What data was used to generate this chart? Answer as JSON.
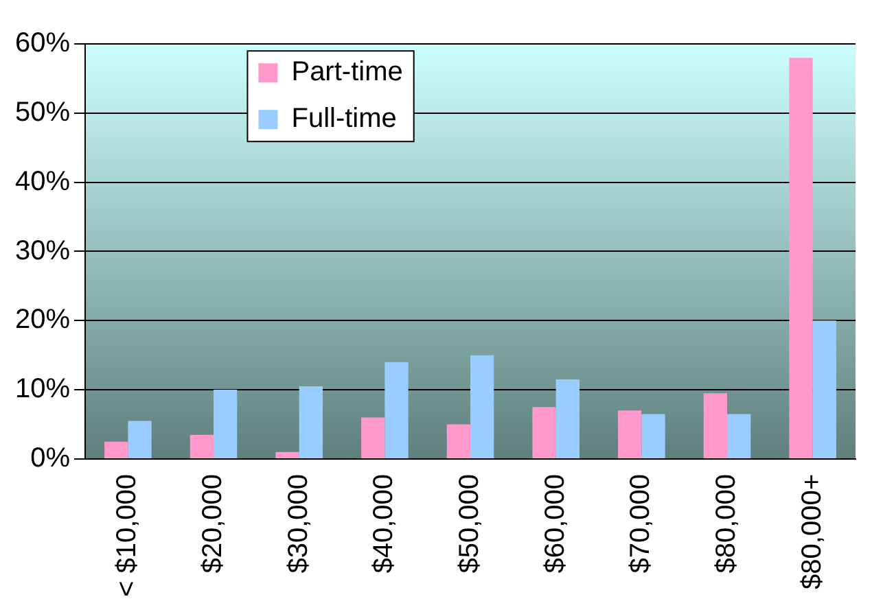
{
  "chart_data": {
    "type": "bar",
    "categories": [
      "< $10,000",
      "$20,000",
      "$30,000",
      "$40,000",
      "$50,000",
      "$60,000",
      "$70,000",
      "$80,000",
      "$80,000+"
    ],
    "series": [
      {
        "name": "Part-time",
        "color": "#ff99cc",
        "values": [
          2.5,
          3.5,
          1,
          6,
          5,
          7.5,
          7,
          9.5,
          58
        ]
      },
      {
        "name": "Full-time",
        "color": "#99ccff",
        "values": [
          5.5,
          10,
          10.5,
          14,
          15,
          11.5,
          6.5,
          6.5,
          20
        ]
      }
    ],
    "ylim": [
      0,
      60
    ],
    "yticks": [
      {
        "value": 0,
        "label": "0%"
      },
      {
        "value": 10,
        "label": "10%"
      },
      {
        "value": 20,
        "label": "20%"
      },
      {
        "value": 30,
        "label": "30%"
      },
      {
        "value": 40,
        "label": "40%"
      },
      {
        "value": 50,
        "label": "50%"
      },
      {
        "value": 60,
        "label": "60%"
      }
    ],
    "grid": "y",
    "legend": "top left"
  }
}
